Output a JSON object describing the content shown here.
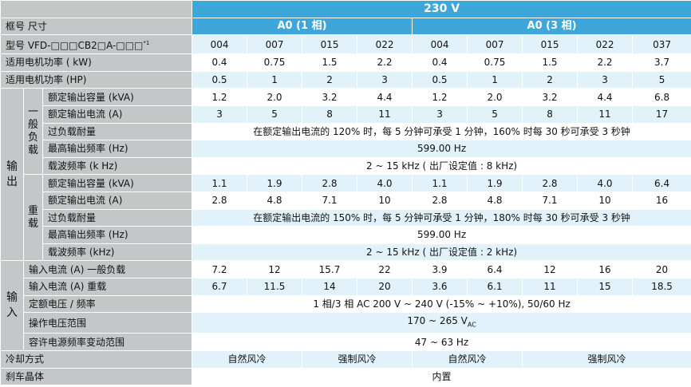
{
  "header": {
    "voltage": "230 V",
    "frame_label": "框号 尺寸",
    "model_label": "型号 VFD-□□□CB2□A-□□□",
    "model_note": "*1",
    "frame_a0_1": "A0 (1 相)",
    "frame_a0_3": "A0 (3 相)",
    "models": [
      "004",
      "007",
      "015",
      "022",
      "004",
      "007",
      "015",
      "022",
      "037"
    ]
  },
  "rows": {
    "kw": {
      "label": "适用电机功率 ( kW)",
      "values": [
        "0.4",
        "0.75",
        "1.5",
        "2.2",
        "0.4",
        "0.75",
        "1.5",
        "2.2",
        "3.7"
      ]
    },
    "hp": {
      "label": "适用电机功率 (HP)",
      "values": [
        "0.5",
        "1",
        "2",
        "3",
        "0.5",
        "1",
        "2",
        "3",
        "5"
      ]
    }
  },
  "output": {
    "label": [
      "输",
      "出"
    ],
    "normal": {
      "label": [
        "一",
        "般",
        "负",
        "载"
      ],
      "kva": {
        "label": "额定输出容量 (kVA)",
        "values": [
          "1.2",
          "2.0",
          "3.2",
          "4.4",
          "1.2",
          "2.0",
          "3.2",
          "4.4",
          "6.8"
        ]
      },
      "amps": {
        "label": "额定输出电流 (A)",
        "values": [
          "3",
          "5",
          "8",
          "11",
          "3",
          "5",
          "8",
          "11",
          "17"
        ]
      },
      "overload": {
        "label": "过负载耐量",
        "value": "在额定输出电流的 120% 时，每 5 分钟可承受 1 分钟，160% 时每 30 秒可承受 3 秒钟"
      },
      "maxfreq": {
        "label": "最高输出频率 (Hz)",
        "value": "599.00 Hz"
      },
      "carrier": {
        "label": "载波频率 (k Hz)",
        "value": "2 ~ 15 kHz ( 出厂设定值 : 8 kHz)"
      }
    },
    "heavy": {
      "label": [
        "重",
        "载"
      ],
      "kva": {
        "label": "额定输出容量 (kVA)",
        "values": [
          "1.1",
          "1.9",
          "2.8",
          "4.0",
          "1.1",
          "1.9",
          "2.8",
          "4.0",
          "6.4"
        ]
      },
      "amps": {
        "label": "额定输出电流 (A)",
        "values": [
          "2.8",
          "4.8",
          "7.1",
          "10",
          "2.8",
          "4.8",
          "7.1",
          "10",
          "16"
        ]
      },
      "overload": {
        "label": "过负载耐量",
        "value": "在额定输出电流的 150% 时，每 5 分钟可承受 1 分钟，180% 时每 30 秒可承受 3 秒钟"
      },
      "maxfreq": {
        "label": "最高输出频率 (Hz)",
        "value": "599.00 Hz"
      },
      "carrier": {
        "label": "载波频率 (kHz)",
        "value": "2 ~ 15 kHz ( 出厂设定值 : 2 kHz)"
      }
    }
  },
  "input": {
    "label": [
      "输",
      "入"
    ],
    "normal_current": {
      "label": "输入电流 (A) 一般负载",
      "values": [
        "7.2",
        "12",
        "15.7",
        "22",
        "3.9",
        "6.4",
        "12",
        "16",
        "20"
      ]
    },
    "heavy_current": {
      "label": "输入电流 (A) 重载",
      "values": [
        "6.7",
        "11.5",
        "14",
        "20",
        "3.6",
        "6.1",
        "11",
        "15",
        "18.5"
      ]
    },
    "rated": {
      "label": "定额电压 / 频率",
      "value": "1 相/3 相   AC 200 V ~ 240 V (-15% ~ +10%), 50/60 Hz"
    },
    "op_range": {
      "label": "操作电压范围",
      "value_main": "170 ~ 265 V",
      "value_sub": "AC"
    },
    "freq_range": {
      "label": "容许电源频率变动范围",
      "value": "47 ~ 63 Hz"
    }
  },
  "cooling": {
    "label": "冷却方式",
    "natural": "自然风冷",
    "forced": "强制风冷"
  },
  "brake": {
    "label": "刹车晶体",
    "value": "内置"
  }
}
